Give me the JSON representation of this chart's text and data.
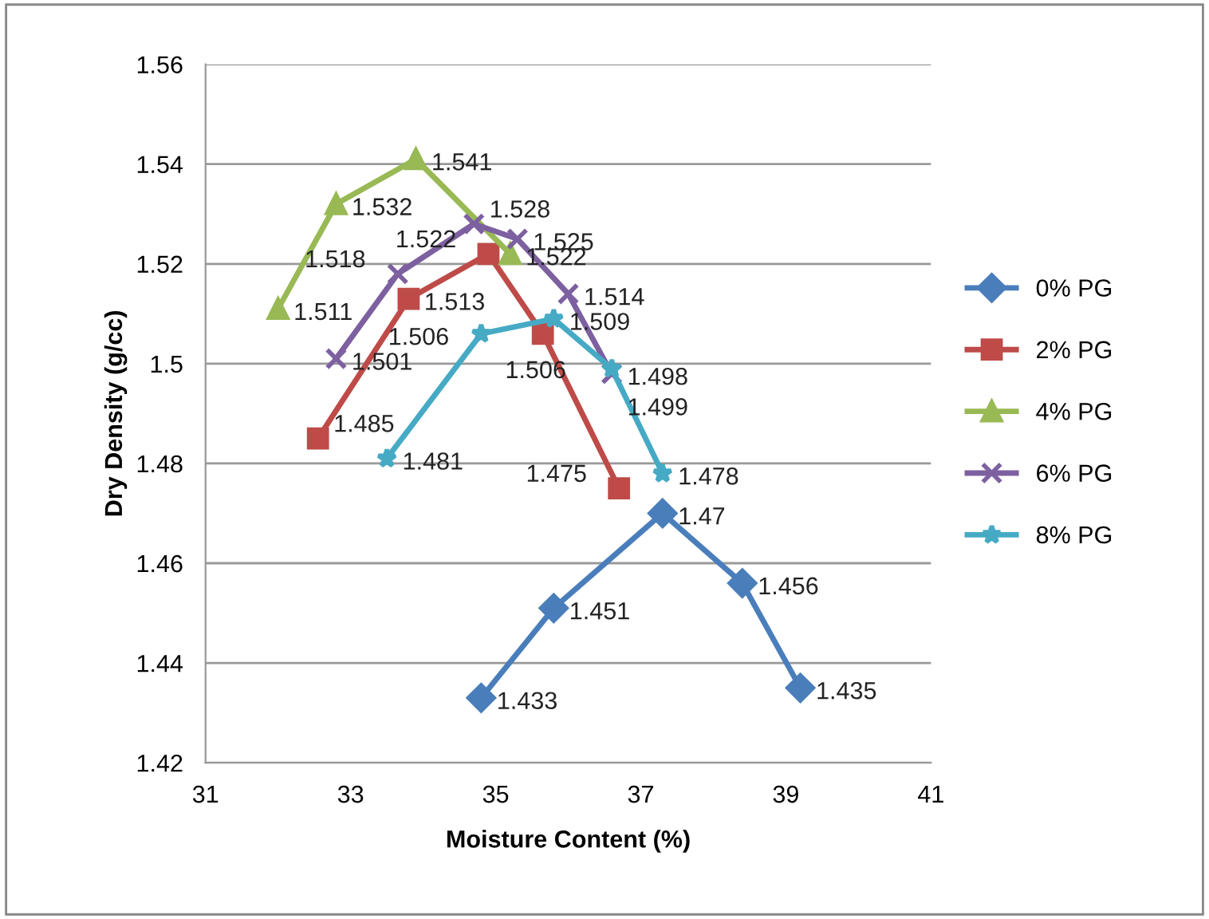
{
  "chart_data": {
    "type": "line",
    "xlabel": "Moisture Content (%)",
    "ylabel": "Dry Density (g/cc)",
    "xlim": [
      31,
      41
    ],
    "xticks": [
      31,
      33,
      35,
      37,
      39,
      41
    ],
    "ylim": [
      1.42,
      1.56
    ],
    "yticks": [
      {
        "value": 1.42,
        "label": "1.42"
      },
      {
        "value": 1.44,
        "label": "1.44"
      },
      {
        "value": 1.46,
        "label": "1.46"
      },
      {
        "value": 1.48,
        "label": "1.48"
      },
      {
        "value": 1.5,
        "label": "1.5"
      },
      {
        "value": 1.52,
        "label": "1.52"
      },
      {
        "value": 1.54,
        "label": "1.54"
      },
      {
        "value": 1.56,
        "label": "1.56"
      }
    ],
    "grid": "y",
    "legend": "right",
    "data_labels": true,
    "line_style": "solid",
    "series": [
      {
        "name": "0% PG",
        "color": "#4a7ebb",
        "marker": "diamond",
        "x": [
          34.8,
          35.8,
          37.3,
          38.4,
          39.2
        ],
        "values": [
          1.433,
          1.451,
          1.47,
          1.456,
          1.435
        ]
      },
      {
        "name": "2% PG",
        "color": "#be4b48",
        "marker": "square",
        "x": [
          32.55,
          33.8,
          34.9,
          35.65,
          36.7
        ],
        "values": [
          1.485,
          1.513,
          1.522,
          1.506,
          1.475
        ]
      },
      {
        "name": "4% PG",
        "color": "#98b954",
        "marker": "triangle",
        "x": [
          32.0,
          32.8,
          33.9,
          35.2
        ],
        "values": [
          1.511,
          1.532,
          1.541,
          1.522
        ]
      },
      {
        "name": "6% PG",
        "color": "#7d60a0",
        "marker": "cross",
        "x": [
          32.8,
          33.65,
          34.7,
          35.3,
          36.0,
          36.6
        ],
        "values": [
          1.501,
          1.518,
          1.528,
          1.525,
          1.514,
          1.498
        ]
      },
      {
        "name": "8% PG",
        "color": "#46aac5",
        "marker": "star",
        "x": [
          33.5,
          34.8,
          35.8,
          36.6,
          37.3
        ],
        "values": [
          1.481,
          1.506,
          1.509,
          1.499,
          1.478
        ]
      }
    ]
  }
}
